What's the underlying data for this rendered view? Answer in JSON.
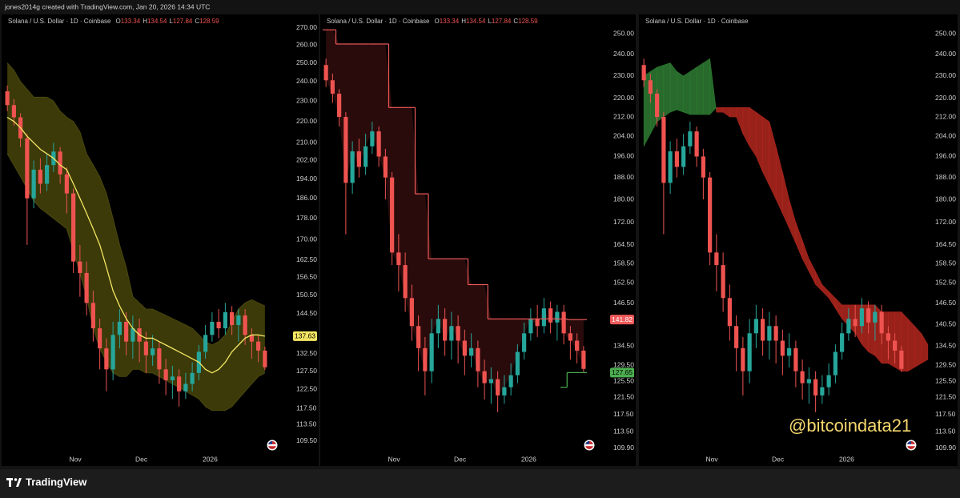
{
  "header": "jones2014g created with TradingView.com, Jan 20, 2026 14:34 UTC",
  "brand": "TradingView",
  "watermark": "@bitcoindata21",
  "ohlc_keys": [
    "O",
    "H",
    "L",
    "C"
  ],
  "candles": {
    "up_color": "#26a69a",
    "down_color": "#ef5350",
    "o": [
      235,
      228,
      222,
      212,
      186,
      198,
      192,
      200,
      206,
      196,
      188,
      162,
      158,
      148,
      140,
      134,
      128,
      138,
      142,
      136,
      140,
      136,
      132,
      134,
      128,
      125,
      126,
      122,
      124,
      127,
      133,
      138,
      142,
      140,
      145,
      141,
      144,
      138,
      136,
      133.34
    ],
    "h": [
      238,
      231,
      224,
      214,
      202,
      203,
      205,
      210,
      208,
      199,
      190,
      168,
      162,
      152,
      143,
      137,
      142,
      146,
      145,
      144,
      143,
      139,
      138,
      136,
      131,
      129,
      128,
      127,
      130,
      135,
      141,
      145,
      146,
      148,
      147,
      146,
      146,
      140,
      138,
      134.54
    ],
    "l": [
      225,
      218,
      208,
      168,
      182,
      188,
      189,
      197,
      192,
      180,
      158,
      150,
      144,
      136,
      128,
      122,
      125,
      134,
      132,
      131,
      130,
      127,
      129,
      124,
      121,
      120,
      118,
      120,
      122,
      125,
      131,
      136,
      137,
      138,
      138,
      136,
      135,
      131,
      130,
      127.84
    ],
    "c": [
      228,
      222,
      212,
      186,
      198,
      192,
      200,
      206,
      196,
      188,
      162,
      158,
      148,
      140,
      134,
      128,
      138,
      142,
      136,
      140,
      136,
      132,
      134,
      128,
      125,
      126,
      122,
      124,
      127,
      133,
      138,
      142,
      140,
      145,
      141,
      144,
      138,
      136,
      133.34,
      128.59
    ]
  },
  "chart_data": [
    {
      "type": "candlestick",
      "legend": "Solana / U.S. Dollar · 1D · Coinbase",
      "show_ohlc": true,
      "log_scale": true,
      "ylim": [
        104,
        277
      ],
      "yticks": [
        {
          "value": 270,
          "label": "270.00"
        },
        {
          "value": 260,
          "label": "260.00"
        },
        {
          "value": 250,
          "label": "250.00"
        },
        {
          "value": 240,
          "label": "240.00"
        },
        {
          "value": 230,
          "label": "230.00"
        },
        {
          "value": 220,
          "label": "220.00"
        },
        {
          "value": 210,
          "label": "210.00"
        },
        {
          "value": 202,
          "label": "202.00"
        },
        {
          "value": 194,
          "label": "194.00"
        },
        {
          "value": 186,
          "label": "186.00"
        },
        {
          "value": 178,
          "label": "178.00"
        },
        {
          "value": 170,
          "label": "170.00"
        },
        {
          "value": 162.5,
          "label": "162.50"
        },
        {
          "value": 156.5,
          "label": "156.50"
        },
        {
          "value": 150.5,
          "label": "150.50"
        },
        {
          "value": 144.5,
          "label": "144.50"
        },
        {
          "value": 132.5,
          "label": "132.50"
        },
        {
          "value": 127.5,
          "label": "127.50"
        },
        {
          "value": 122.5,
          "label": "122.50"
        },
        {
          "value": 117.5,
          "label": "117.50"
        },
        {
          "value": 113.5,
          "label": "113.50"
        },
        {
          "value": 109.5,
          "label": "109.50"
        }
      ],
      "xticks": [
        {
          "value": 10.3,
          "label": "Nov"
        },
        {
          "value": 20.3,
          "label": "Dec"
        },
        {
          "value": 30.7,
          "label": "2026"
        }
      ],
      "overlay": {
        "type": "bands",
        "fill": "#3b3a08",
        "line_color": "#f5e663",
        "edge_color": "#4a4810",
        "label_color": "#f5e663",
        "upper": [
          250,
          246,
          240,
          236,
          232,
          232,
          232,
          230,
          225,
          222,
          220,
          215,
          205,
          200,
          195,
          188,
          178,
          168,
          160,
          150,
          148,
          146,
          146,
          145,
          144,
          143,
          142,
          141,
          140,
          138,
          136,
          135,
          136,
          138,
          142,
          146,
          148,
          149,
          148,
          147
        ],
        "middle": [
          222,
          220,
          217,
          213,
          210,
          207,
          205,
          203,
          200,
          198,
          192,
          186,
          180,
          174,
          168,
          160,
          152,
          147,
          143,
          140,
          138,
          137,
          137,
          136,
          135,
          134,
          133,
          132,
          131,
          130,
          128,
          127,
          128,
          130,
          133,
          135,
          137,
          138,
          138,
          137.63
        ],
        "lower": [
          205,
          200,
          195,
          190,
          185,
          182,
          180,
          178,
          176,
          174,
          166,
          158,
          150,
          140,
          134,
          130,
          127,
          126,
          126,
          128,
          128,
          127,
          127,
          126,
          125,
          124,
          123,
          122,
          121,
          120,
          118,
          117,
          117,
          117,
          118,
          120,
          122,
          124,
          126,
          127
        ]
      }
    },
    {
      "type": "candlestick",
      "legend": "Solana / U.S. Dollar · 1D · Coinbase",
      "show_ohlc": true,
      "log_scale": true,
      "ylim": [
        106.4,
        259
      ],
      "yticks": [
        {
          "value": 250,
          "label": "250.00"
        },
        {
          "value": 240,
          "label": "240.00"
        },
        {
          "value": 230,
          "label": "230.00"
        },
        {
          "value": 220,
          "label": "220.00"
        },
        {
          "value": 212,
          "label": "212.00"
        },
        {
          "value": 204,
          "label": "204.00"
        },
        {
          "value": 196,
          "label": "196.00"
        },
        {
          "value": 188,
          "label": "188.00"
        },
        {
          "value": 180,
          "label": "180.00"
        },
        {
          "value": 172,
          "label": "172.00"
        },
        {
          "value": 164.5,
          "label": "164.50"
        },
        {
          "value": 158.5,
          "label": "158.50"
        },
        {
          "value": 152.5,
          "label": "152.50"
        },
        {
          "value": 146.5,
          "label": "146.50"
        },
        {
          "value": 134.5,
          "label": "134.50"
        },
        {
          "value": 129.5,
          "label": "129.50"
        },
        {
          "value": 125.5,
          "label": "125.50"
        },
        {
          "value": 121.5,
          "label": "121.50"
        },
        {
          "value": 117.5,
          "label": "117.50"
        },
        {
          "value": 113.5,
          "label": "113.50"
        },
        {
          "value": 109.9,
          "label": "109.90"
        }
      ],
      "xticks": [
        {
          "value": 10.3,
          "label": "Nov"
        },
        {
          "value": 20.3,
          "label": "Dec"
        },
        {
          "value": 30.7,
          "label": "2026"
        }
      ],
      "overlay": {
        "type": "step",
        "line_color": "#f05a5a",
        "fill": "#2a0b0b",
        "lower_color": "#4caf50",
        "line": [
          252,
          252,
          245,
          245,
          245,
          245,
          245,
          245,
          245,
          245,
          216,
          216,
          216,
          216,
          182,
          182,
          160,
          160,
          160,
          160,
          160,
          160,
          152,
          152,
          152,
          142,
          142,
          142,
          142,
          142,
          142,
          142,
          142,
          142,
          142,
          142,
          142,
          141.82,
          141.82,
          141.82
        ],
        "lower": [
          null,
          null,
          null,
          null,
          null,
          null,
          null,
          null,
          null,
          null,
          null,
          null,
          null,
          null,
          null,
          null,
          null,
          null,
          null,
          null,
          null,
          null,
          null,
          null,
          null,
          null,
          null,
          null,
          null,
          null,
          null,
          null,
          null,
          null,
          null,
          null,
          124,
          127.65,
          127.65,
          127.65
        ]
      }
    },
    {
      "type": "candlestick",
      "legend": "Solana / U.S. Dollar · 1D · Coinbase",
      "show_ohlc": false,
      "log_scale": true,
      "ylim": [
        106.4,
        259
      ],
      "yticks": [
        {
          "value": 250,
          "label": "250.00"
        },
        {
          "value": 240,
          "label": "240.00"
        },
        {
          "value": 230,
          "label": "230.00"
        },
        {
          "value": 220,
          "label": "220.00"
        },
        {
          "value": 212,
          "label": "212.00"
        },
        {
          "value": 204,
          "label": "204.00"
        },
        {
          "value": 196,
          "label": "196.00"
        },
        {
          "value": 188,
          "label": "188.00"
        },
        {
          "value": 180,
          "label": "180.00"
        },
        {
          "value": 172,
          "label": "172.00"
        },
        {
          "value": 164.5,
          "label": "164.50"
        },
        {
          "value": 158.5,
          "label": "158.50"
        },
        {
          "value": 152.5,
          "label": "152.50"
        },
        {
          "value": 146.5,
          "label": "146.50"
        },
        {
          "value": 140.5,
          "label": "140.50"
        },
        {
          "value": 134.5,
          "label": "134.50"
        },
        {
          "value": 129.5,
          "label": "129.50"
        },
        {
          "value": 125.5,
          "label": "125.50"
        },
        {
          "value": 121.5,
          "label": "121.50"
        },
        {
          "value": 117.5,
          "label": "117.50"
        },
        {
          "value": 113.5,
          "label": "113.50"
        },
        {
          "value": 109.9,
          "label": "109.90"
        }
      ],
      "xticks": [
        {
          "value": 10.3,
          "label": "Nov"
        },
        {
          "value": 20.3,
          "label": "Dec"
        },
        {
          "value": 30.7,
          "label": "2026"
        }
      ],
      "overlay": {
        "type": "cloud",
        "up_color": "#2e7d32",
        "down_color": "#b3271f",
        "span_a": [
          230,
          232,
          234,
          235,
          236,
          232,
          230,
          232,
          234,
          236,
          238,
          214,
          214,
          212,
          212,
          205,
          200,
          196,
          190,
          185,
          180,
          175,
          170,
          165,
          160,
          156,
          152,
          150,
          148,
          145,
          142,
          140,
          138,
          135,
          133,
          132,
          130,
          130,
          129,
          128,
          128,
          129,
          130,
          131
        ],
        "span_b": [
          200,
          205,
          210,
          212,
          214,
          215,
          214,
          213,
          213,
          213,
          213,
          216,
          216,
          216,
          216,
          216,
          216,
          214,
          212,
          210,
          200,
          190,
          180,
          172,
          166,
          160,
          156,
          152,
          150,
          148,
          146,
          146,
          146,
          146,
          146,
          146,
          144,
          144,
          144,
          144,
          142,
          140,
          138,
          135
        ]
      }
    }
  ]
}
